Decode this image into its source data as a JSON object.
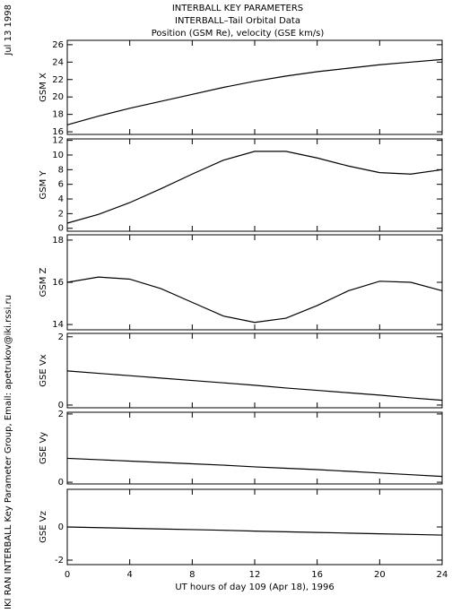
{
  "header": {
    "title_lines": [
      "INTERBALL KEY PARAMETERS",
      "INTERBALL–Tail Orbital Data",
      "Position (GSM Re), velocity (GSE km/s)"
    ],
    "date": "Jul 13 1998",
    "credit": "IKI RAN INTERBALL Key Parameter Group, Email: apetrukov@iki.rssi.ru"
  },
  "chart_data": [
    {
      "type": "line",
      "ylabel": "GSM X",
      "color": "#000000",
      "x": [
        0,
        2,
        4,
        6,
        8,
        10,
        12,
        14,
        16,
        18,
        20,
        22,
        24
      ],
      "values": [
        16.8,
        17.8,
        18.7,
        19.5,
        20.3,
        21.1,
        21.8,
        22.4,
        22.9,
        23.3,
        23.7,
        24.0,
        24.3
      ],
      "xlim": [
        0,
        24
      ],
      "xticks": [
        0,
        4,
        8,
        12,
        16,
        20,
        24
      ],
      "ylim": [
        15.7,
        26.5
      ],
      "yticks": [
        16,
        18,
        20,
        22,
        24,
        26
      ]
    },
    {
      "type": "line",
      "ylabel": "GSM Y",
      "color": "#000000",
      "x": [
        0,
        2,
        4,
        6,
        8,
        10,
        12,
        14,
        16,
        18,
        20,
        22,
        24
      ],
      "values": [
        0.7,
        1.9,
        3.5,
        5.4,
        7.4,
        9.3,
        10.5,
        10.5,
        9.6,
        8.5,
        7.6,
        7.4,
        8.0
      ],
      "xlim": [
        0,
        24
      ],
      "xticks": [
        0,
        4,
        8,
        12,
        16,
        20,
        24
      ],
      "ylim": [
        -0.4,
        12.2
      ],
      "yticks": [
        0,
        2,
        4,
        6,
        8,
        10,
        12
      ]
    },
    {
      "type": "line",
      "ylabel": "GSM Z",
      "color": "#000000",
      "x": [
        0,
        2,
        4,
        6,
        8,
        10,
        12,
        14,
        16,
        18,
        20,
        22,
        24
      ],
      "values": [
        16.0,
        16.25,
        16.15,
        15.7,
        15.05,
        14.4,
        14.1,
        14.3,
        14.9,
        15.6,
        16.05,
        16.0,
        15.6
      ],
      "xlim": [
        0,
        24
      ],
      "xticks": [
        0,
        4,
        8,
        12,
        16,
        20,
        24
      ],
      "ylim": [
        13.75,
        18.25
      ],
      "yticks": [
        14,
        16,
        18
      ]
    },
    {
      "type": "line",
      "ylabel": "GSE Vx",
      "color": "#000000",
      "x": [
        0,
        2,
        4,
        6,
        8,
        10,
        12,
        14,
        16,
        18,
        20,
        22,
        24
      ],
      "values": [
        1.0,
        0.93,
        0.86,
        0.79,
        0.72,
        0.65,
        0.58,
        0.5,
        0.43,
        0.36,
        0.29,
        0.21,
        0.14
      ],
      "xlim": [
        0,
        24
      ],
      "xticks": [
        0,
        4,
        8,
        12,
        16,
        20,
        24
      ],
      "ylim": [
        -0.08,
        2.1
      ],
      "yticks": [
        0,
        2
      ]
    },
    {
      "type": "line",
      "ylabel": "GSE Vy",
      "color": "#000000",
      "x": [
        0,
        2,
        4,
        6,
        8,
        10,
        12,
        14,
        16,
        18,
        20,
        22,
        24
      ],
      "values": [
        0.7,
        0.66,
        0.62,
        0.58,
        0.54,
        0.5,
        0.45,
        0.41,
        0.37,
        0.32,
        0.27,
        0.22,
        0.17
      ],
      "xlim": [
        0,
        24
      ],
      "xticks": [
        0,
        4,
        8,
        12,
        16,
        20,
        24
      ],
      "ylim": [
        -0.05,
        2.05
      ],
      "yticks": [
        0,
        2
      ]
    },
    {
      "type": "line",
      "ylabel": "GSE Vz",
      "xlabel": "UT hours of day 109 (Apr 18), 1996",
      "color": "#000000",
      "x": [
        0,
        2,
        4,
        6,
        8,
        10,
        12,
        14,
        16,
        18,
        20,
        22,
        24
      ],
      "values": [
        0.0,
        -0.04,
        -0.08,
        -0.12,
        -0.16,
        -0.2,
        -0.25,
        -0.29,
        -0.33,
        -0.37,
        -0.41,
        -0.45,
        -0.49
      ],
      "xlim": [
        0,
        24
      ],
      "xticks": [
        0,
        4,
        8,
        12,
        16,
        20,
        24
      ],
      "ylim": [
        -2.27,
        2.27
      ],
      "yticks": [
        -2,
        0
      ]
    }
  ]
}
